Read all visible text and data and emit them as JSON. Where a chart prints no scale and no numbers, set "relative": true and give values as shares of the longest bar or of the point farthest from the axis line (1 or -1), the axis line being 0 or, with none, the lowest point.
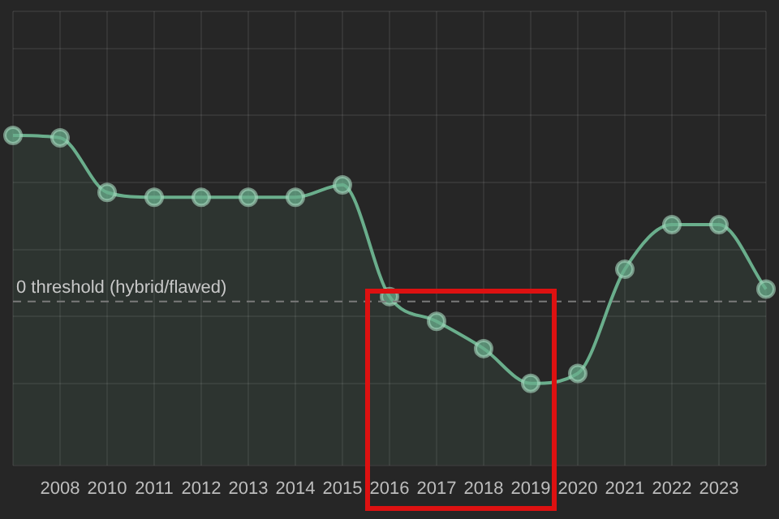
{
  "chart_data": {
    "type": "area",
    "relative": true,
    "categories": [
      null,
      "2008",
      "2010",
      "2011",
      "2012",
      "2013",
      "2014",
      "2015",
      "2016",
      "2017",
      "2018",
      "2019",
      "2020",
      "2021",
      "2022",
      "2023",
      null
    ],
    "series": [
      {
        "color": "#6aae8c",
        "values": [
          1,
          0.99,
          0.77,
          0.75,
          0.75,
          0.75,
          0.75,
          0.8,
          0.35,
          0.25,
          0.14,
          0,
          0.04,
          0.46,
          0.64,
          0.64,
          0.38
        ]
      }
    ],
    "ref_lines": [
      {
        "axis": "y",
        "value": 0.33,
        "label": "0 threshold (hybrid/flawed)",
        "line_style": "dashed",
        "color": "#7a7a7a"
      }
    ],
    "grid": true,
    "legend": false,
    "tick_labels": "x",
    "marker": "circle",
    "line_style": "solid"
  }
}
